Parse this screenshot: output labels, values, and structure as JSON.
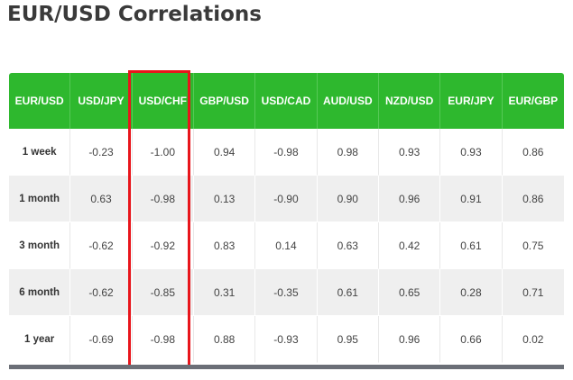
{
  "title": "EUR/USD Correlations",
  "table": {
    "headers": [
      "EUR/USD",
      "USD/JPY",
      "USD/CHF",
      "GBP/USD",
      "USD/CAD",
      "AUD/USD",
      "NZD/USD",
      "EUR/JPY",
      "EUR/GBP"
    ],
    "rows": [
      {
        "label": "1 week",
        "values": [
          "-0.23",
          "-1.00",
          "0.94",
          "-0.98",
          "0.98",
          "0.93",
          "0.93",
          "0.86"
        ]
      },
      {
        "label": "1 month",
        "values": [
          "0.63",
          "-0.98",
          "0.13",
          "-0.90",
          "0.90",
          "0.96",
          "0.91",
          "0.86"
        ]
      },
      {
        "label": "3 month",
        "values": [
          "-0.62",
          "-0.92",
          "0.83",
          "0.14",
          "0.63",
          "0.42",
          "0.61",
          "0.75"
        ]
      },
      {
        "label": "6 month",
        "values": [
          "-0.62",
          "-0.85",
          "0.31",
          "-0.35",
          "0.61",
          "0.65",
          "0.28",
          "0.71"
        ]
      },
      {
        "label": "1 year",
        "values": [
          "-0.69",
          "-0.98",
          "0.88",
          "-0.93",
          "0.95",
          "0.96",
          "0.66",
          "0.02"
        ]
      }
    ]
  },
  "highlight": {
    "column": "USD/CHF",
    "color": "#e8151b"
  },
  "colors": {
    "header_bg": "#2eb82e",
    "alt_row_bg": "#efefef",
    "bottom_bar": "#6b6f77"
  }
}
